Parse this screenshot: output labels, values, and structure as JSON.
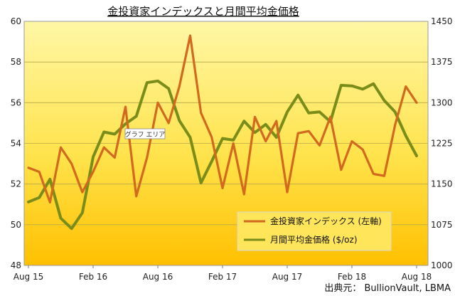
{
  "chart_data": {
    "type": "line",
    "title": "金投資家インデックスと月間平均金価格",
    "source": "出典元： BullionVault, LBMA",
    "tooltip": "グラフ エリア",
    "x_ticks": [
      "Aug 15",
      "Feb 16",
      "Aug 16",
      "Feb 17",
      "Aug 17",
      "Feb 18",
      "Aug 18"
    ],
    "x": [
      "2015-08",
      "2015-09",
      "2015-10",
      "2015-11",
      "2015-12",
      "2016-01",
      "2016-02",
      "2016-03",
      "2016-04",
      "2016-05",
      "2016-06",
      "2016-07",
      "2016-08",
      "2016-09",
      "2016-10",
      "2016-11",
      "2016-12",
      "2017-01",
      "2017-02",
      "2017-03",
      "2017-04",
      "2017-05",
      "2017-06",
      "2017-07",
      "2017-08",
      "2017-09",
      "2017-10",
      "2017-11",
      "2017-12",
      "2018-01",
      "2018-02",
      "2018-03",
      "2018-04",
      "2018-05",
      "2018-06",
      "2018-07",
      "2018-08"
    ],
    "y_left": {
      "min": 48,
      "max": 60,
      "ticks": [
        48,
        50,
        52,
        54,
        56,
        58,
        60
      ]
    },
    "y_right": {
      "min": 1000,
      "max": 1450,
      "ticks": [
        1000,
        1075,
        1150,
        1225,
        1300,
        1375,
        1450
      ]
    },
    "series": [
      {
        "name": "金投資家インデックス (左軸)",
        "axis": "left",
        "color": "#D2691E",
        "values": [
          52.8,
          52.6,
          51.1,
          53.8,
          53.0,
          51.6,
          52.6,
          53.8,
          53.3,
          55.8,
          51.4,
          53.3,
          56.0,
          55.0,
          56.8,
          59.3,
          55.5,
          54.3,
          51.8,
          54.0,
          51.5,
          55.3,
          54.1,
          55.1,
          51.6,
          54.5,
          54.6,
          53.9,
          55.3,
          52.7,
          54.1,
          53.7,
          52.5,
          52.4,
          54.9,
          56.8,
          56.0
        ]
      },
      {
        "name": "月間平均金価格 ($/oz)",
        "axis": "right",
        "color": "#7A8C1A",
        "values": [
          1117,
          1125,
          1159,
          1087,
          1068,
          1097,
          1200,
          1246,
          1242,
          1261,
          1275,
          1337,
          1340,
          1326,
          1267,
          1236,
          1152,
          1192,
          1234,
          1231,
          1266,
          1245,
          1260,
          1236,
          1283,
          1314,
          1281,
          1283,
          1265,
          1332,
          1331,
          1325,
          1335,
          1304,
          1283,
          1239,
          1202
        ]
      }
    ]
  }
}
